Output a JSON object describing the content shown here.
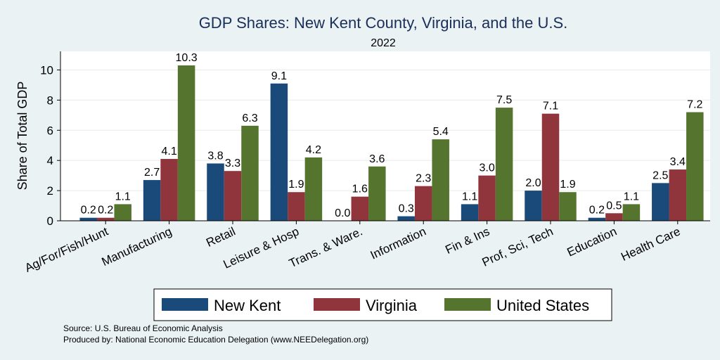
{
  "chart_data": {
    "type": "bar",
    "title": "GDP Shares: New Kent County, Virginia, and the U.S.",
    "subtitle": "2022",
    "ylabel": "Share of Total GDP",
    "xlabel": "",
    "ylim": [
      0,
      11
    ],
    "yticks": [
      0,
      2,
      4,
      6,
      8,
      10
    ],
    "grid": true,
    "legend_position": "bottom",
    "categories": [
      "Ag/For/Fish/Hunt",
      "Manufacturing",
      "Retail",
      "Leisure & Hosp",
      "Trans. & Ware.",
      "Information",
      "Fin & Ins",
      "Prof, Sci, Tech",
      "Education",
      "Health Care"
    ],
    "series": [
      {
        "name": "New Kent",
        "color": "#1a4a7a",
        "values": [
          0.2,
          2.7,
          3.8,
          9.1,
          0.0,
          0.3,
          1.1,
          2.0,
          0.2,
          2.5
        ],
        "labels": [
          "0.2",
          "2.7",
          "3.8",
          "9.1",
          "0.0",
          "0.3",
          "1.1",
          "2.0",
          "0.2",
          "2.5"
        ]
      },
      {
        "name": "Virginia",
        "color": "#90353b",
        "values": [
          0.2,
          4.1,
          3.3,
          1.9,
          1.6,
          2.3,
          3.0,
          7.1,
          0.5,
          3.4
        ],
        "labels": [
          "0.2",
          "4.1",
          "3.3",
          "1.9",
          "1.6",
          "2.3",
          "3.0",
          "7.1",
          "0.5",
          "3.4"
        ]
      },
      {
        "name": "United States",
        "color": "#55752f",
        "values": [
          1.1,
          10.3,
          6.3,
          4.2,
          3.6,
          5.4,
          7.5,
          1.9,
          1.1,
          7.2
        ],
        "labels": [
          "1.1",
          "10.3",
          "6.3",
          "4.2",
          "3.6",
          "5.4",
          "7.5",
          "1.9",
          "1.1",
          "7.2"
        ]
      }
    ]
  },
  "notes": {
    "source": "Source: U.S. Bureau of Economic Analysis",
    "produced": "Produced by: National Economic Education Delegation (www.NEEDelegation.org)"
  }
}
